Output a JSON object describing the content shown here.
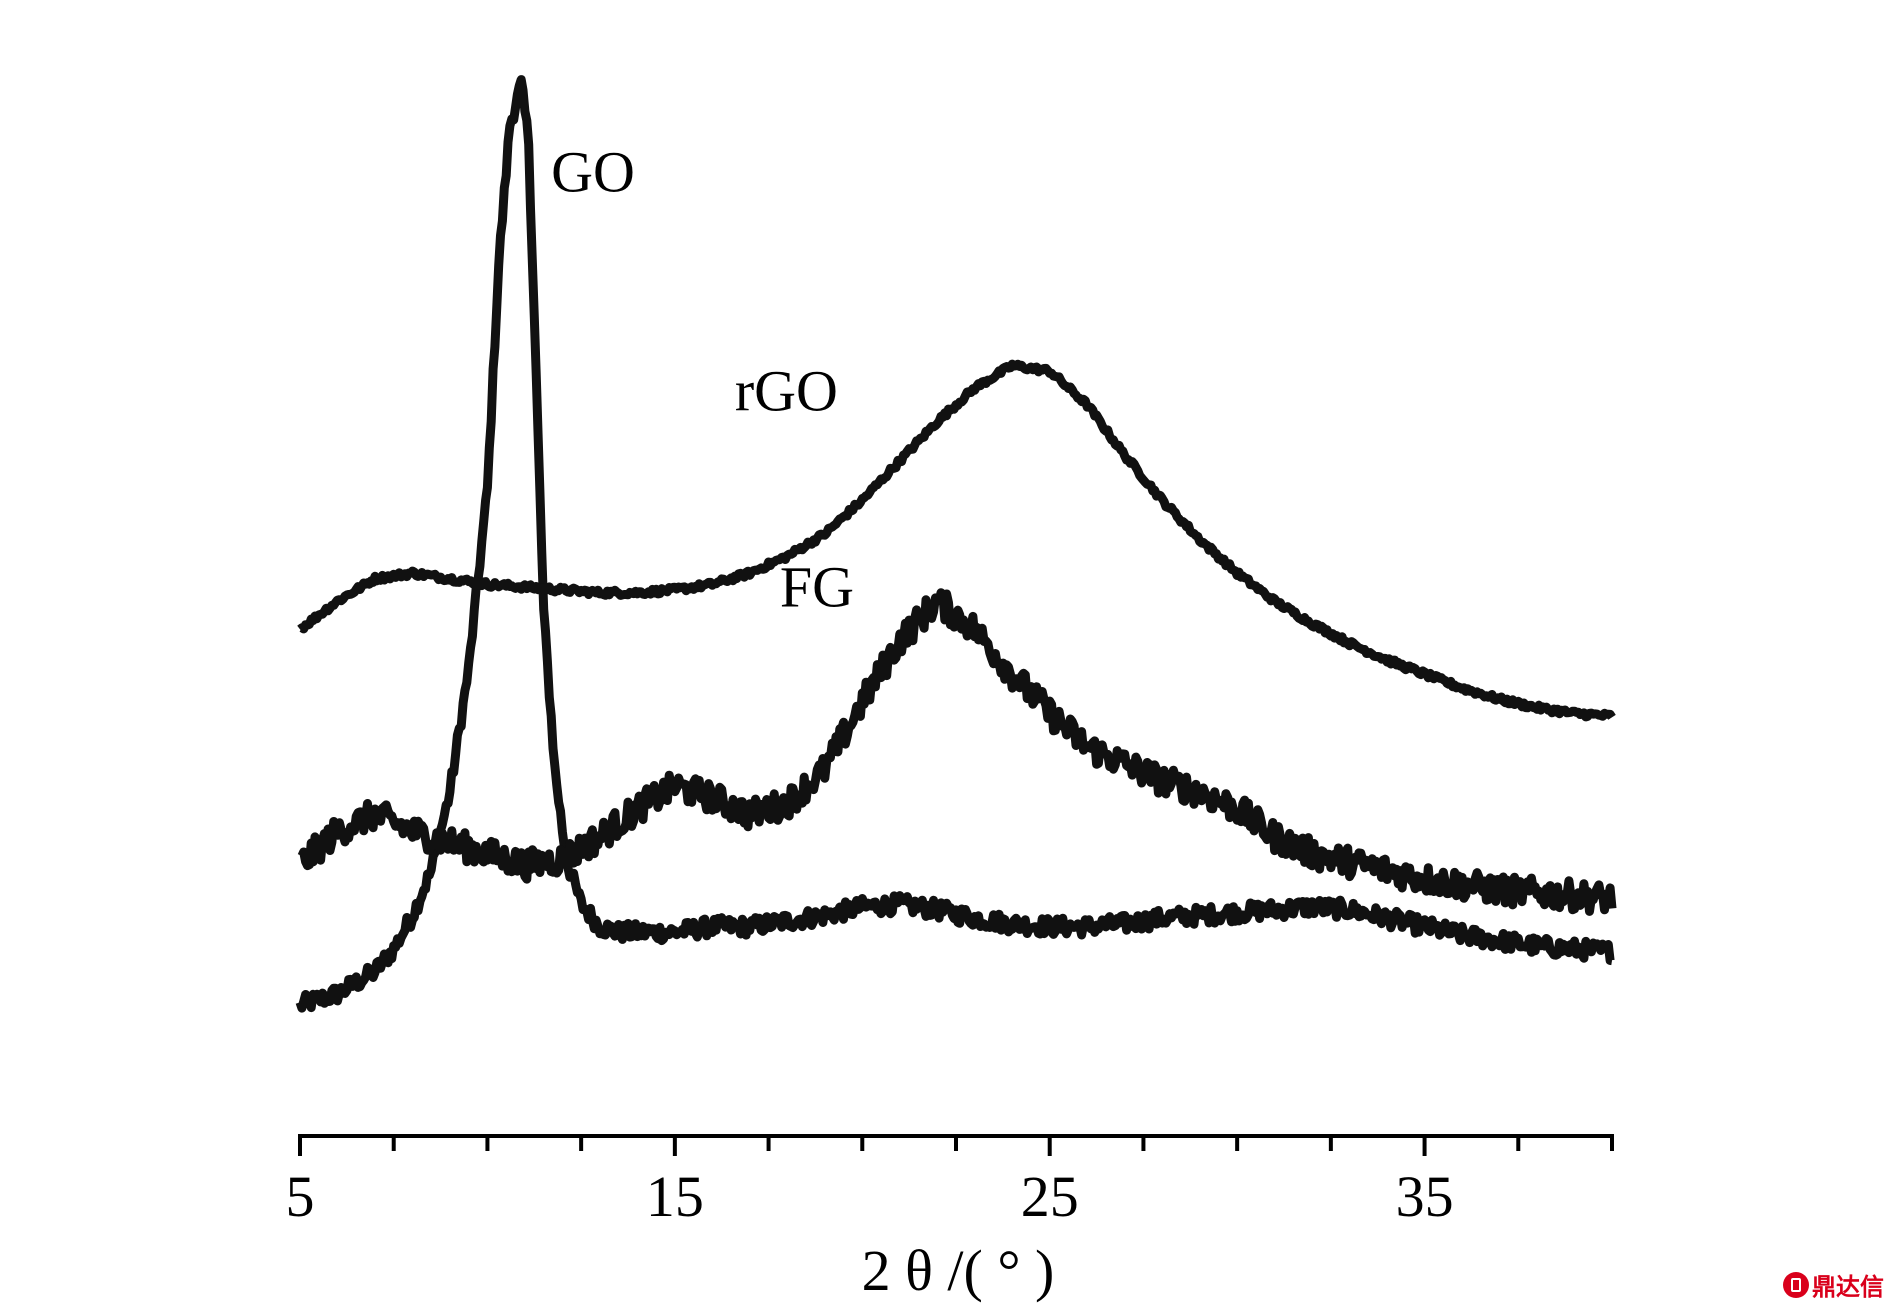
{
  "chart_data": {
    "type": "line",
    "xlabel": "2 θ /( ° )",
    "ylabel": "",
    "xlim": [
      5,
      40
    ],
    "x_ticks": [
      5,
      15,
      25,
      35
    ],
    "x_tick_labels": [
      "5",
      "15",
      "25",
      "35"
    ],
    "x_minor_step": 2.5,
    "y_ticks_shown": false,
    "grid": false,
    "legend": "none (curves labelled directly)",
    "line_color": "#111111",
    "series": [
      {
        "name": "GO",
        "x": [
          5,
          6,
          7,
          7.5,
          8,
          8.5,
          9,
          9.5,
          10,
          10.3,
          10.6,
          10.9,
          11.1,
          11.3,
          11.5,
          11.8,
          12.1,
          12.5,
          13,
          13.5,
          14,
          15,
          16,
          17,
          18,
          19,
          20,
          21,
          22,
          23,
          24,
          25,
          26,
          27,
          28,
          29,
          30,
          31,
          32,
          33,
          34,
          35,
          36,
          37,
          38,
          39,
          40
        ],
        "y": [
          8,
          10,
          14,
          18,
          24,
          32,
          46,
          68,
          100,
          140,
          165,
          172,
          162,
          120,
          78,
          50,
          34,
          26,
          22,
          21,
          21,
          21,
          22,
          22,
          23,
          24,
          25.5,
          26,
          25,
          23.5,
          22.5,
          22,
          22,
          22.5,
          23.5,
          24,
          24.5,
          25,
          25.5,
          25,
          23.5,
          22,
          20.5,
          19.5,
          18.5,
          18,
          17.5
        ]
      },
      {
        "name": "rGO",
        "x": [
          5,
          6,
          7,
          8,
          9,
          10,
          11,
          12,
          13,
          14,
          15,
          16,
          17,
          18,
          19,
          20,
          21,
          22,
          23,
          24,
          25,
          26,
          27,
          28,
          29,
          30,
          31,
          32,
          33,
          34,
          35,
          36,
          37,
          38,
          39,
          40
        ],
        "y": [
          75,
          80,
          84,
          85,
          84,
          83,
          82.5,
          82,
          81.5,
          81.5,
          82,
          83,
          85,
          88,
          92,
          98,
          105,
          112,
          118,
          122,
          121,
          115,
          106,
          98,
          91,
          85,
          80,
          76,
          72.5,
          69.5,
          67,
          64.5,
          62.5,
          61,
          60,
          59.5
        ]
      },
      {
        "name": "FG",
        "x": [
          5,
          6,
          7,
          8,
          9,
          10,
          11,
          12,
          13,
          14,
          15,
          16,
          17,
          18,
          19,
          20,
          21,
          22,
          23,
          24,
          25,
          26,
          27,
          28,
          29,
          30,
          31,
          32,
          33,
          34,
          35,
          36,
          37,
          38,
          39,
          40
        ],
        "y": [
          33,
          39,
          42,
          39,
          37,
          35,
          33,
          34,
          38,
          43,
          47,
          45,
          42,
          44,
          50,
          62,
          73,
          80,
          75,
          67,
          60,
          54,
          51,
          48,
          46,
          43,
          38,
          35,
          33.5,
          32,
          30.5,
          29.5,
          28.5,
          28,
          27.5,
          27
        ]
      }
    ],
    "annotations": [
      {
        "text": "GO",
        "x": 11.7,
        "y": 153
      },
      {
        "text": "rGO",
        "x": 16.6,
        "y": 114
      },
      {
        "text": "FG",
        "x": 17.8,
        "y": 79
      }
    ],
    "ylim": [
      0,
      180
    ]
  },
  "watermark": {
    "text": "鼎达信",
    "color": "#d9001b"
  }
}
